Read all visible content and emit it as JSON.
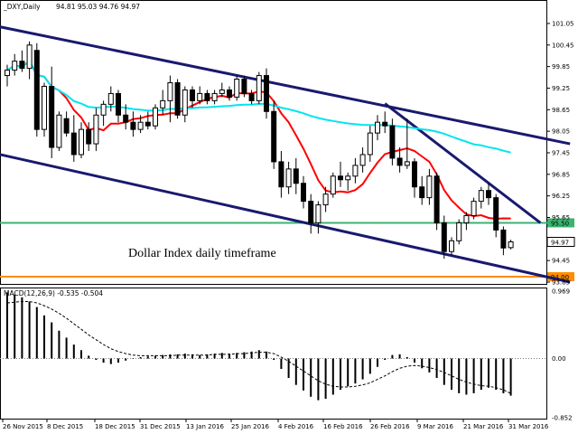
{
  "chart_data": [
    {
      "type": "candlestick",
      "symbol_label": "_DXY,Daily",
      "ohlc_label": "94.81 95.03 94.76 94.97",
      "annotation": "Dollar Index daily timeframe",
      "ylim": [
        93.85,
        101.2
      ],
      "y_ticks": [
        "101.05",
        "100.45",
        "99.85",
        "99.25",
        "98.65",
        "98.05",
        "97.45",
        "96.85",
        "96.25",
        "95.65",
        "95.05",
        "94.45",
        "93.85"
      ],
      "x_ticks": [
        "26 Nov 2015",
        "8 Dec 2015",
        "18 Dec 2015",
        "31 Dec 2015",
        "13 Jan 2016",
        "25 Jan 2016",
        "4 Feb 2016",
        "16 Feb 2016",
        "26 Feb 2016",
        "9 Mar 2016",
        "21 Mar 2016",
        "31 Mar 2016"
      ],
      "current_price": {
        "label": "94.97",
        "value": 94.97
      },
      "levels": [
        {
          "label": "95.50",
          "value": 95.5,
          "color": "#3cb371"
        },
        {
          "label": "94.00",
          "value": 94.0,
          "color": "#ff8c00"
        }
      ],
      "candles": [
        {
          "o": 99.6,
          "h": 99.9,
          "l": 99.3,
          "c": 99.75
        },
        {
          "o": 99.75,
          "h": 100.2,
          "l": 99.6,
          "c": 100.0
        },
        {
          "o": 100.0,
          "h": 100.3,
          "l": 99.7,
          "c": 99.8
        },
        {
          "o": 99.8,
          "h": 100.55,
          "l": 99.5,
          "c": 100.45
        },
        {
          "o": 100.3,
          "h": 100.5,
          "l": 97.9,
          "c": 98.1
        },
        {
          "o": 98.1,
          "h": 99.4,
          "l": 97.9,
          "c": 99.3
        },
        {
          "o": 99.3,
          "h": 99.85,
          "l": 97.3,
          "c": 97.6
        },
        {
          "o": 97.6,
          "h": 98.6,
          "l": 97.5,
          "c": 98.5
        },
        {
          "o": 98.4,
          "h": 98.6,
          "l": 97.9,
          "c": 98.0
        },
        {
          "o": 98.0,
          "h": 98.5,
          "l": 97.2,
          "c": 97.4
        },
        {
          "o": 97.4,
          "h": 98.3,
          "l": 97.3,
          "c": 98.1
        },
        {
          "o": 98.1,
          "h": 98.3,
          "l": 97.5,
          "c": 97.7
        },
        {
          "o": 97.7,
          "h": 98.7,
          "l": 97.5,
          "c": 98.5
        },
        {
          "o": 98.5,
          "h": 98.9,
          "l": 98.2,
          "c": 98.8
        },
        {
          "o": 98.8,
          "h": 99.3,
          "l": 98.6,
          "c": 99.1
        },
        {
          "o": 99.1,
          "h": 99.2,
          "l": 98.3,
          "c": 98.5
        },
        {
          "o": 98.5,
          "h": 98.8,
          "l": 98.1,
          "c": 98.3
        },
        {
          "o": 98.3,
          "h": 98.6,
          "l": 97.9,
          "c": 98.1
        },
        {
          "o": 98.1,
          "h": 98.5,
          "l": 98.0,
          "c": 98.3
        },
        {
          "o": 98.3,
          "h": 98.6,
          "l": 98.1,
          "c": 98.2
        },
        {
          "o": 98.2,
          "h": 98.8,
          "l": 98.1,
          "c": 98.7
        },
        {
          "o": 98.7,
          "h": 99.2,
          "l": 98.5,
          "c": 98.9
        },
        {
          "o": 98.9,
          "h": 99.6,
          "l": 98.3,
          "c": 99.4
        },
        {
          "o": 99.4,
          "h": 99.5,
          "l": 98.4,
          "c": 98.5
        },
        {
          "o": 98.5,
          "h": 99.3,
          "l": 98.3,
          "c": 99.2
        },
        {
          "o": 99.2,
          "h": 99.3,
          "l": 98.7,
          "c": 98.9
        },
        {
          "o": 98.9,
          "h": 99.3,
          "l": 98.8,
          "c": 99.1
        },
        {
          "o": 99.1,
          "h": 99.2,
          "l": 98.8,
          "c": 98.9
        },
        {
          "o": 98.9,
          "h": 99.2,
          "l": 98.8,
          "c": 99.1
        },
        {
          "o": 99.1,
          "h": 99.4,
          "l": 99.0,
          "c": 99.2
        },
        {
          "o": 99.2,
          "h": 99.3,
          "l": 98.9,
          "c": 99.0
        },
        {
          "o": 99.0,
          "h": 99.6,
          "l": 98.9,
          "c": 99.5
        },
        {
          "o": 99.5,
          "h": 99.6,
          "l": 99.0,
          "c": 99.1
        },
        {
          "o": 99.1,
          "h": 99.2,
          "l": 98.8,
          "c": 98.9
        },
        {
          "o": 98.9,
          "h": 99.7,
          "l": 98.8,
          "c": 99.6
        },
        {
          "o": 99.6,
          "h": 99.8,
          "l": 98.4,
          "c": 98.6
        },
        {
          "o": 98.6,
          "h": 98.9,
          "l": 97.0,
          "c": 97.2
        },
        {
          "o": 97.2,
          "h": 97.5,
          "l": 96.2,
          "c": 96.5
        },
        {
          "o": 96.5,
          "h": 97.2,
          "l": 96.3,
          "c": 97.0
        },
        {
          "o": 97.0,
          "h": 97.3,
          "l": 96.3,
          "c": 96.6
        },
        {
          "o": 96.6,
          "h": 96.8,
          "l": 95.9,
          "c": 96.1
        },
        {
          "o": 96.1,
          "h": 96.3,
          "l": 95.2,
          "c": 95.5
        },
        {
          "o": 95.5,
          "h": 96.1,
          "l": 95.2,
          "c": 96.0
        },
        {
          "o": 96.0,
          "h": 96.5,
          "l": 95.8,
          "c": 96.3
        },
        {
          "o": 96.3,
          "h": 96.9,
          "l": 96.2,
          "c": 96.8
        },
        {
          "o": 96.8,
          "h": 97.2,
          "l": 96.5,
          "c": 96.7
        },
        {
          "o": 96.7,
          "h": 96.9,
          "l": 96.4,
          "c": 96.8
        },
        {
          "o": 96.8,
          "h": 97.3,
          "l": 96.6,
          "c": 97.1
        },
        {
          "o": 97.1,
          "h": 97.6,
          "l": 96.9,
          "c": 97.4
        },
        {
          "o": 97.4,
          "h": 98.2,
          "l": 97.2,
          "c": 98.0
        },
        {
          "o": 98.0,
          "h": 98.5,
          "l": 97.8,
          "c": 98.3
        },
        {
          "o": 98.3,
          "h": 98.6,
          "l": 98.0,
          "c": 98.2
        },
        {
          "o": 98.2,
          "h": 98.4,
          "l": 97.1,
          "c": 97.3
        },
        {
          "o": 97.3,
          "h": 97.6,
          "l": 96.9,
          "c": 97.1
        },
        {
          "o": 97.1,
          "h": 98.4,
          "l": 97.0,
          "c": 97.2
        },
        {
          "o": 97.2,
          "h": 97.3,
          "l": 96.2,
          "c": 96.5
        },
        {
          "o": 96.5,
          "h": 96.8,
          "l": 96.0,
          "c": 96.2
        },
        {
          "o": 96.2,
          "h": 97.0,
          "l": 96.0,
          "c": 96.8
        },
        {
          "o": 96.8,
          "h": 96.9,
          "l": 95.3,
          "c": 95.5
        },
        {
          "o": 95.5,
          "h": 95.7,
          "l": 94.5,
          "c": 94.7
        },
        {
          "o": 94.7,
          "h": 95.1,
          "l": 94.6,
          "c": 95.0
        },
        {
          "o": 95.0,
          "h": 95.6,
          "l": 94.9,
          "c": 95.5
        },
        {
          "o": 95.5,
          "h": 95.8,
          "l": 95.3,
          "c": 95.7
        },
        {
          "o": 95.7,
          "h": 96.2,
          "l": 95.6,
          "c": 96.1
        },
        {
          "o": 96.1,
          "h": 96.5,
          "l": 95.9,
          "c": 96.4
        },
        {
          "o": 96.4,
          "h": 96.6,
          "l": 96.0,
          "c": 96.2
        },
        {
          "o": 96.2,
          "h": 96.3,
          "l": 95.1,
          "c": 95.3
        },
        {
          "o": 95.3,
          "h": 95.4,
          "l": 94.6,
          "c": 94.8
        },
        {
          "o": 94.81,
          "h": 95.03,
          "l": 94.76,
          "c": 94.97
        }
      ],
      "indicators": [
        {
          "kind": "moving_average",
          "color": "#ff0000"
        },
        {
          "kind": "moving_average",
          "color": "#00e5ee"
        }
      ],
      "trendlines": [
        {
          "from": [
            -2,
            101.0
          ],
          "to": [
            76,
            97.7
          ],
          "color": "#191970"
        },
        {
          "from": [
            -2,
            97.45
          ],
          "to": [
            76,
            93.85
          ],
          "color": "#191970"
        },
        {
          "from": [
            51,
            98.82
          ],
          "to": [
            72,
            95.5
          ],
          "color": "#191970"
        }
      ]
    },
    {
      "type": "bar",
      "indicator_label": "MACD(12,26,9) -0.535 -0.504",
      "ylim": [
        -0.852,
        0.969
      ],
      "y_ticks": [
        "0.969",
        "0.00",
        "-0.852"
      ],
      "macd": [
        0.95,
        0.92,
        0.88,
        0.82,
        0.74,
        0.62,
        0.52,
        0.4,
        0.3,
        0.2,
        0.12,
        0.04,
        -0.02,
        -0.06,
        -0.08,
        -0.06,
        -0.03,
        0.0,
        0.02,
        0.03,
        0.04,
        0.05,
        0.06,
        0.06,
        0.07,
        0.06,
        0.05,
        0.06,
        0.07,
        0.08,
        0.07,
        0.08,
        0.09,
        0.1,
        0.12,
        0.1,
        -0.02,
        -0.15,
        -0.28,
        -0.38,
        -0.46,
        -0.55,
        -0.6,
        -0.58,
        -0.52,
        -0.45,
        -0.4,
        -0.36,
        -0.3,
        -0.22,
        -0.12,
        -0.02,
        0.05,
        0.06,
        0.02,
        -0.06,
        -0.14,
        -0.2,
        -0.28,
        -0.38,
        -0.45,
        -0.5,
        -0.52,
        -0.5,
        -0.45,
        -0.42,
        -0.45,
        -0.5,
        -0.535
      ],
      "signal": [
        0.8,
        0.81,
        0.82,
        0.82,
        0.8,
        0.76,
        0.71,
        0.65,
        0.58,
        0.5,
        0.42,
        0.34,
        0.27,
        0.2,
        0.14,
        0.1,
        0.07,
        0.05,
        0.04,
        0.04,
        0.04,
        0.04,
        0.04,
        0.05,
        0.05,
        0.05,
        0.05,
        0.05,
        0.06,
        0.06,
        0.06,
        0.07,
        0.07,
        0.08,
        0.09,
        0.09,
        0.07,
        0.02,
        -0.04,
        -0.11,
        -0.18,
        -0.25,
        -0.32,
        -0.37,
        -0.4,
        -0.41,
        -0.41,
        -0.4,
        -0.38,
        -0.35,
        -0.3,
        -0.25,
        -0.19,
        -0.14,
        -0.11,
        -0.1,
        -0.11,
        -0.13,
        -0.16,
        -0.2,
        -0.25,
        -0.3,
        -0.34,
        -0.37,
        -0.39,
        -0.4,
        -0.42,
        -0.45,
        -0.504
      ]
    }
  ]
}
